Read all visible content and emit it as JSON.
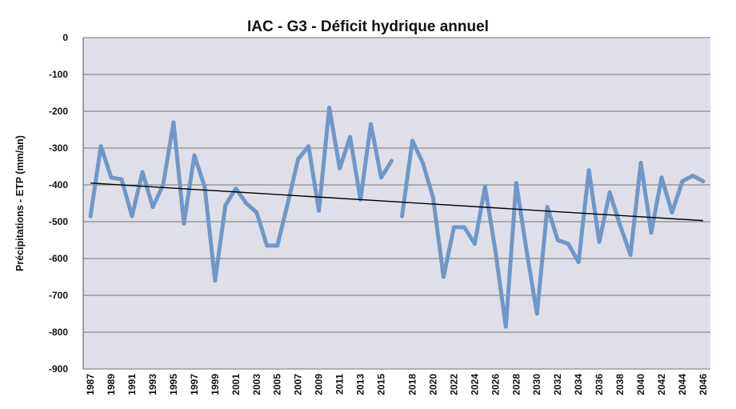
{
  "chart_data": {
    "type": "line",
    "title": "IAC - G3 - Déficit hydrique annuel",
    "xlabel": "",
    "ylabel": "Précipitations - ETP (mm/an)",
    "ylim": [
      -900,
      0
    ],
    "yticks": [
      0,
      -100,
      -200,
      -300,
      -400,
      -500,
      -600,
      -700,
      -800,
      -900
    ],
    "xticks": [
      1987,
      1989,
      1991,
      1993,
      1995,
      1997,
      1999,
      2001,
      2003,
      2005,
      2007,
      2009,
      2011,
      2013,
      2015,
      2018,
      2020,
      2022,
      2024,
      2026,
      2028,
      2030,
      2032,
      2034,
      2036,
      2038,
      2040,
      2042,
      2044,
      2046
    ],
    "grid": true,
    "legend": "none",
    "series_color": "#6f97c7",
    "trend_color": "#000000",
    "series": [
      {
        "x": [
          1987,
          1988,
          1989,
          1990,
          1991,
          1992,
          1993,
          1994,
          1995,
          1996,
          1997,
          1998,
          1999,
          2000,
          2001,
          2002,
          2003,
          2004,
          2005,
          2006,
          2007,
          2008,
          2009,
          2010,
          2011,
          2012,
          2013,
          2014,
          2015,
          2016
        ],
        "values": [
          -485,
          -295,
          -380,
          -385,
          -485,
          -365,
          -460,
          -400,
          -230,
          -505,
          -320,
          -405,
          -660,
          -455,
          -410,
          -450,
          -475,
          -565,
          -565,
          -450,
          -330,
          -295,
          -470,
          -190,
          -355,
          -270,
          -440,
          -235,
          -380,
          -335
        ]
      },
      {
        "x": [
          2017,
          2018,
          2019,
          2020,
          2021,
          2022,
          2023,
          2024,
          2025,
          2026,
          2027,
          2028,
          2029,
          2030,
          2031,
          2032,
          2033,
          2034,
          2035,
          2036,
          2037,
          2038,
          2039,
          2040,
          2041,
          2042,
          2043,
          2044,
          2045,
          2046
        ],
        "values": [
          -485,
          -280,
          -340,
          -435,
          -650,
          -515,
          -515,
          -560,
          -405,
          -580,
          -785,
          -395,
          -580,
          -750,
          -460,
          -550,
          -560,
          -610,
          -360,
          -555,
          -420,
          -510,
          -590,
          -340,
          -530,
          -380,
          -475,
          -390,
          -375,
          -390
        ]
      }
    ],
    "trend": {
      "x": [
        1987,
        2046
      ],
      "values": [
        -395,
        -497
      ]
    }
  }
}
